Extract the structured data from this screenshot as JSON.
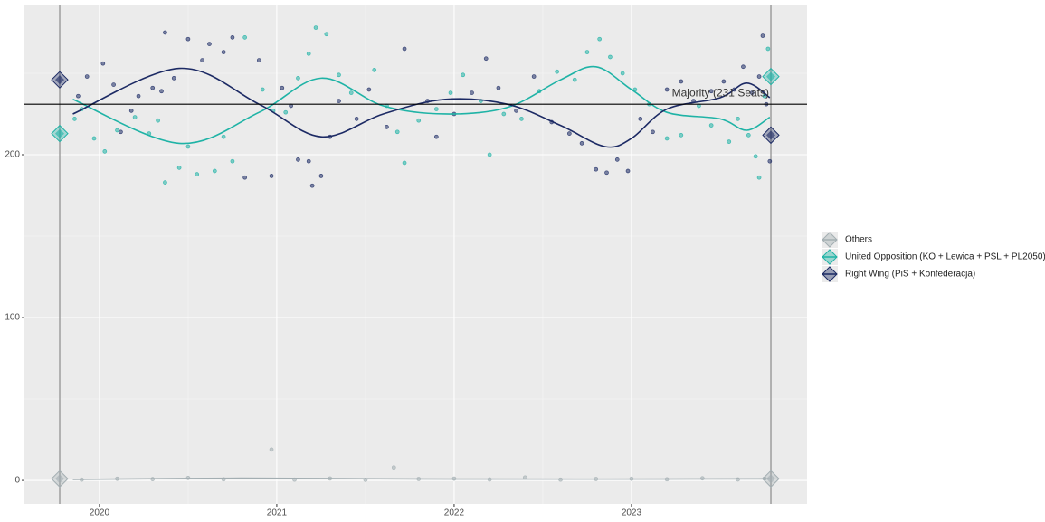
{
  "chart_data": {
    "type": "scatter",
    "xlim": [
      2019.577,
      2023.99
    ],
    "xticks": [
      2020,
      2021,
      2022,
      2023
    ],
    "ylim": [
      -14.4,
      292.2
    ],
    "yticks": [
      0,
      100,
      200
    ],
    "grid": true,
    "election_dates": [
      2019.776,
      2023.786
    ],
    "majority": {
      "value": 231,
      "label": "Majority (231 Seats)"
    },
    "series": [
      {
        "name": "Others",
        "color": "#a3aeb2",
        "x": [
          2019.9,
          2020.1,
          2020.3,
          2020.5,
          2020.7,
          2020.97,
          2021.1,
          2021.3,
          2021.5,
          2021.66,
          2021.8,
          2022.0,
          2022.2,
          2022.4,
          2022.6,
          2022.8,
          2023.0,
          2023.2,
          2023.4,
          2023.6,
          2023.75
        ],
        "values": [
          0.5,
          1,
          0.8,
          1.5,
          0.7,
          19,
          0.5,
          1.2,
          0.4,
          8,
          0.9,
          1.1,
          0.6,
          1.8,
          0.5,
          0.9,
          1.0,
          0.7,
          1.3,
          0.6,
          1.1
        ],
        "trend": {
          "x": [
            2019.85,
            2020.8,
            2021.8,
            2022.8,
            2023.78
          ],
          "values": [
            0.6,
            1.4,
            0.9,
            0.8,
            1.0
          ]
        },
        "election_values": [
          1,
          1
        ]
      },
      {
        "name": "United Opposition (KO + Lewica + PSL + PL2050)",
        "color": "#1fb3a6",
        "x": [
          2019.86,
          2019.9,
          2019.97,
          2020.03,
          2020.1,
          2020.2,
          2020.28,
          2020.33,
          2020.37,
          2020.45,
          2020.5,
          2020.55,
          2020.65,
          2020.7,
          2020.75,
          2020.82,
          2020.92,
          2020.98,
          2021.05,
          2021.12,
          2021.18,
          2021.22,
          2021.28,
          2021.35,
          2021.42,
          2021.55,
          2021.62,
          2021.68,
          2021.72,
          2021.8,
          2021.9,
          2021.98,
          2022.05,
          2022.15,
          2022.2,
          2022.28,
          2022.38,
          2022.48,
          2022.58,
          2022.68,
          2022.75,
          2022.82,
          2022.88,
          2022.95,
          2023.02,
          2023.1,
          2023.2,
          2023.28,
          2023.38,
          2023.45,
          2023.55,
          2023.6,
          2023.66,
          2023.7,
          2023.72,
          2023.75,
          2023.77
        ],
        "values": [
          222,
          228,
          210,
          202,
          215,
          223,
          213,
          221,
          183,
          192,
          205,
          188,
          190,
          211,
          196,
          272,
          240,
          227,
          226,
          247,
          262,
          278,
          274,
          249,
          238,
          252,
          230,
          214,
          195,
          221,
          228,
          238,
          249,
          233,
          200,
          225,
          222,
          239,
          251,
          246,
          263,
          271,
          260,
          250,
          240,
          231,
          210,
          212,
          230,
          218,
          208,
          222,
          212,
          199,
          186,
          236,
          265
        ],
        "trend": {
          "x": [
            2019.85,
            2020.45,
            2020.9,
            2021.25,
            2021.6,
            2021.95,
            2022.3,
            2022.6,
            2022.8,
            2023.0,
            2023.2,
            2023.5,
            2023.65,
            2023.78
          ],
          "values": [
            234,
            207,
            226,
            247,
            230,
            225,
            229,
            246,
            254,
            240,
            226,
            222,
            215,
            223
          ]
        },
        "election_values": [
          213,
          248
        ]
      },
      {
        "name": "Right Wing (PiS + Konfederacja)",
        "color": "#1c2a64",
        "x": [
          2019.88,
          2019.93,
          2020.02,
          2020.08,
          2020.12,
          2020.18,
          2020.22,
          2020.3,
          2020.35,
          2020.37,
          2020.42,
          2020.5,
          2020.58,
          2020.62,
          2020.7,
          2020.75,
          2020.82,
          2020.9,
          2020.97,
          2021.03,
          2021.08,
          2021.12,
          2021.18,
          2021.2,
          2021.25,
          2021.3,
          2021.35,
          2021.45,
          2021.52,
          2021.62,
          2021.72,
          2021.85,
          2021.9,
          2022.0,
          2022.1,
          2022.18,
          2022.25,
          2022.35,
          2022.45,
          2022.55,
          2022.65,
          2022.72,
          2022.8,
          2022.86,
          2022.92,
          2022.98,
          2023.05,
          2023.12,
          2023.2,
          2023.28,
          2023.35,
          2023.45,
          2023.52,
          2023.58,
          2023.63,
          2023.68,
          2023.72,
          2023.74,
          2023.76,
          2023.78
        ],
        "values": [
          236,
          248,
          256,
          243,
          214,
          227,
          236,
          241,
          239,
          275,
          247,
          271,
          258,
          268,
          263,
          272,
          186,
          258,
          187,
          241,
          230,
          197,
          196,
          181,
          187,
          211,
          233,
          222,
          240,
          217,
          265,
          233,
          211,
          225,
          238,
          259,
          241,
          227,
          248,
          220,
          213,
          207,
          191,
          189,
          197,
          190,
          222,
          214,
          240,
          245,
          233,
          239,
          245,
          240,
          254,
          238,
          248,
          273,
          231,
          196
        ],
        "trend": {
          "x": [
            2019.85,
            2020.45,
            2020.9,
            2021.25,
            2021.6,
            2021.95,
            2022.3,
            2022.6,
            2022.85,
            2023.0,
            2023.2,
            2023.5,
            2023.65,
            2023.78
          ],
          "values": [
            225,
            253,
            231,
            211,
            225,
            234,
            231,
            218,
            205,
            210,
            228,
            235,
            244,
            235
          ]
        },
        "election_values": [
          246,
          212
        ]
      }
    ]
  }
}
